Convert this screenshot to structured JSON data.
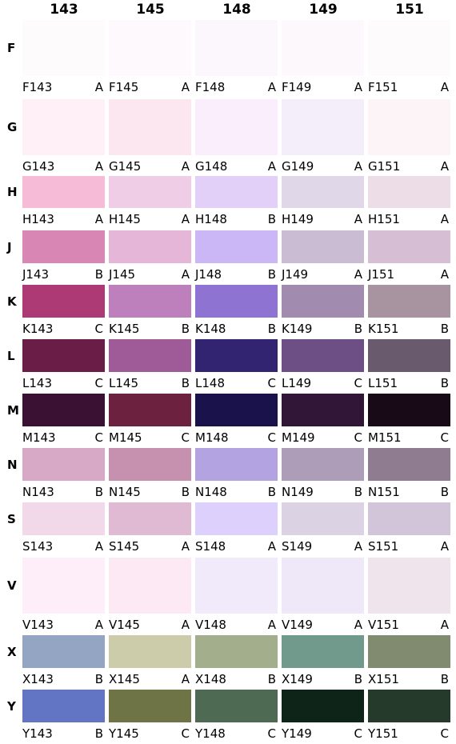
{
  "columns": [
    "143",
    "145",
    "148",
    "149",
    "151"
  ],
  "rows": [
    {
      "label": "F",
      "cells": [
        {
          "code": "F143",
          "grade": "A",
          "color": "#fefbfd"
        },
        {
          "code": "F145",
          "grade": "A",
          "color": "#fdf9fc"
        },
        {
          "code": "F148",
          "grade": "A",
          "color": "#fcf7fd"
        },
        {
          "code": "F149",
          "grade": "A",
          "color": "#fcf8fc"
        },
        {
          "code": "F151",
          "grade": "A",
          "color": "#fdfbfc"
        }
      ]
    },
    {
      "label": "G",
      "cells": [
        {
          "code": "G143",
          "grade": "A",
          "color": "#fef0f6"
        },
        {
          "code": "G145",
          "grade": "A",
          "color": "#fce6f0"
        },
        {
          "code": "G148",
          "grade": "A",
          "color": "#faeefc"
        },
        {
          "code": "G149",
          "grade": "A",
          "color": "#f4eefb"
        },
        {
          "code": "G151",
          "grade": "A",
          "color": "#fcf4f7"
        }
      ]
    },
    {
      "label": "H",
      "cells": [
        {
          "code": "H143",
          "grade": "A",
          "color": "#f6bbd6"
        },
        {
          "code": "H145",
          "grade": "A",
          "color": "#f0cde6"
        },
        {
          "code": "H148",
          "grade": "B",
          "color": "#e3d0f8"
        },
        {
          "code": "H149",
          "grade": "A",
          "color": "#e0d8e9"
        },
        {
          "code": "H151",
          "grade": "A",
          "color": "#ecdde6"
        }
      ]
    },
    {
      "label": "J",
      "cells": [
        {
          "code": "J143",
          "grade": "B",
          "color": "#d887b4"
        },
        {
          "code": "J145",
          "grade": "A",
          "color": "#e6b6d9"
        },
        {
          "code": "J148",
          "grade": "B",
          "color": "#cbb6f6"
        },
        {
          "code": "J149",
          "grade": "A",
          "color": "#c9bcd3"
        },
        {
          "code": "J151",
          "grade": "A",
          "color": "#d6bed4"
        }
      ]
    },
    {
      "label": "K",
      "cells": [
        {
          "code": "K143",
          "grade": "C",
          "color": "#ad3a75"
        },
        {
          "code": "K145",
          "grade": "B",
          "color": "#bd80bd"
        },
        {
          "code": "K148",
          "grade": "B",
          "color": "#8f73d3"
        },
        {
          "code": "K149",
          "grade": "B",
          "color": "#a18cb0"
        },
        {
          "code": "K151",
          "grade": "B",
          "color": "#a894a0"
        }
      ]
    },
    {
      "label": "L",
      "cells": [
        {
          "code": "L143",
          "grade": "C",
          "color": "#6a1e47"
        },
        {
          "code": "L145",
          "grade": "B",
          "color": "#9e5b98"
        },
        {
          "code": "L148",
          "grade": "C",
          "color": "#322470"
        },
        {
          "code": "L149",
          "grade": "C",
          "color": "#6e4f85"
        },
        {
          "code": "L151",
          "grade": "B",
          "color": "#6a5a6e"
        }
      ]
    },
    {
      "label": "M",
      "cells": [
        {
          "code": "M143",
          "grade": "C",
          "color": "#3a1033"
        },
        {
          "code": "M145",
          "grade": "C",
          "color": "#6c213e"
        },
        {
          "code": "M148",
          "grade": "C",
          "color": "#1a124a"
        },
        {
          "code": "M149",
          "grade": "C",
          "color": "#321638"
        },
        {
          "code": "M151",
          "grade": "C",
          "color": "#180a16"
        }
      ]
    },
    {
      "label": "N",
      "cells": [
        {
          "code": "N143",
          "grade": "B",
          "color": "#d8a9c7"
        },
        {
          "code": "N145",
          "grade": "B",
          "color": "#c691ae"
        },
        {
          "code": "N148",
          "grade": "B",
          "color": "#b3a3e0"
        },
        {
          "code": "N149",
          "grade": "B",
          "color": "#ad9db8"
        },
        {
          "code": "N151",
          "grade": "B",
          "color": "#8f7c91"
        }
      ]
    },
    {
      "label": "S",
      "cells": [
        {
          "code": "S143",
          "grade": "A",
          "color": "#f1d9e9"
        },
        {
          "code": "S145",
          "grade": "A",
          "color": "#e0b9d3"
        },
        {
          "code": "S148",
          "grade": "A",
          "color": "#ddd0fc"
        },
        {
          "code": "S149",
          "grade": "A",
          "color": "#dbd3e3"
        },
        {
          "code": "S151",
          "grade": "A",
          "color": "#d2c5d9"
        }
      ]
    },
    {
      "label": "V",
      "cells": [
        {
          "code": "V143",
          "grade": "A",
          "color": "#fdeefa"
        },
        {
          "code": "V145",
          "grade": "A",
          "color": "#fde9f3"
        },
        {
          "code": "V148",
          "grade": "A",
          "color": "#f1eafa"
        },
        {
          "code": "V149",
          "grade": "A",
          "color": "#eee8f8"
        },
        {
          "code": "V151",
          "grade": "A",
          "color": "#efe3ec"
        }
      ]
    },
    {
      "label": "X",
      "cells": [
        {
          "code": "X143",
          "grade": "B",
          "color": "#94a5c3"
        },
        {
          "code": "X145",
          "grade": "A",
          "color": "#ccccab"
        },
        {
          "code": "X148",
          "grade": "B",
          "color": "#a2ae8c"
        },
        {
          "code": "X149",
          "grade": "B",
          "color": "#71998c"
        },
        {
          "code": "X151",
          "grade": "B",
          "color": "#808b6f"
        }
      ]
    },
    {
      "label": "Y",
      "cells": [
        {
          "code": "Y143",
          "grade": "B",
          "color": "#6175c4"
        },
        {
          "code": "Y145",
          "grade": "C",
          "color": "#6f7447"
        },
        {
          "code": "Y148",
          "grade": "C",
          "color": "#4f6a53"
        },
        {
          "code": "Y149",
          "grade": "C",
          "color": "#0f2418"
        },
        {
          "code": "Y151",
          "grade": "C",
          "color": "#263a2c"
        }
      ]
    }
  ]
}
